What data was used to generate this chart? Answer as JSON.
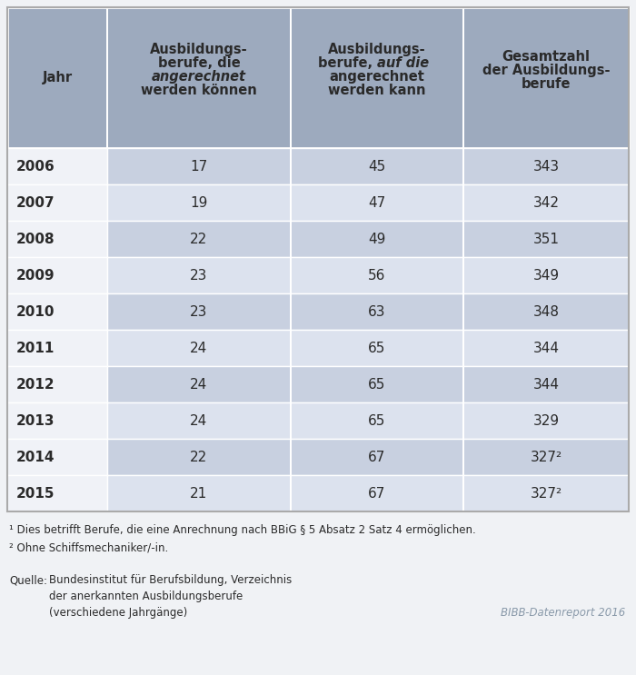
{
  "years": [
    "2006",
    "2007",
    "2008",
    "2009",
    "2010",
    "2011",
    "2012",
    "2013",
    "2014",
    "2015"
  ],
  "col1_values": [
    "17",
    "19",
    "22",
    "23",
    "23",
    "24",
    "24",
    "24",
    "22",
    "21"
  ],
  "col2_values": [
    "45",
    "47",
    "49",
    "56",
    "63",
    "65",
    "65",
    "65",
    "67",
    "67"
  ],
  "col3_values": [
    "343",
    "342",
    "351",
    "349",
    "348",
    "344",
    "344",
    "329",
    "327²",
    "327²"
  ],
  "footnote1": "¹ Dies betrifft Berufe, die eine Anrechnung nach BBiG § 5 Absatz 2 Satz 4 ermöglichen.",
  "footnote2": "² Ohne Schiffsmechaniker/-in.",
  "source_label": "Quelle:",
  "source_text1": "Bundesinstitut für Berufsbildung, Verzeichnis",
  "source_text2": "der anerkannten Ausbildungsberufe",
  "source_text3": "(verschiedene Jahrgänge)",
  "brand": "BIBB-Datenreport 2016",
  "header_bg": "#9daabe",
  "row_bg_alt1": "#c8d0e0",
  "row_bg_alt2": "#dce2ee",
  "row_bg_white": "#f0f2f7",
  "fig_bg": "#f0f2f5",
  "text_dark": "#2a2a2a",
  "text_mid": "#4a4a4a",
  "border_color": "#ffffff",
  "outer_border": "#aaaaaa"
}
